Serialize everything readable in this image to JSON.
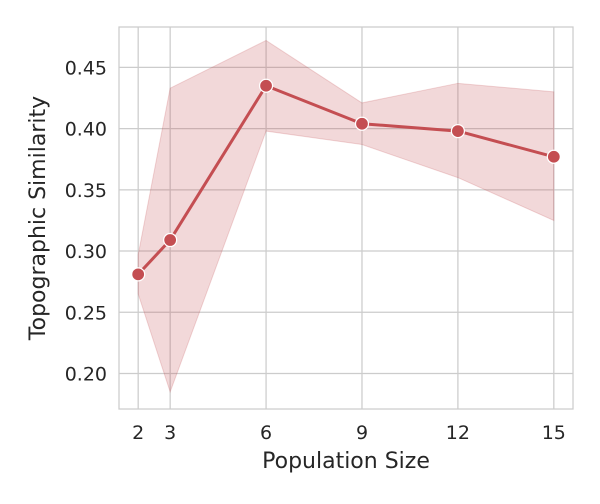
{
  "chart_data": {
    "type": "line",
    "title": "",
    "xlabel": "Population Size",
    "ylabel": "Topographic Similarity",
    "x": [
      2,
      3,
      6,
      9,
      12,
      15
    ],
    "xlim": [
      1.4,
      15.6
    ],
    "ylim": [
      0.171,
      0.483
    ],
    "xticks": [
      2,
      3,
      6,
      9,
      12,
      15
    ],
    "xtick_labels": [
      "2",
      "3",
      "6",
      "9",
      "12",
      "15"
    ],
    "yticks": [
      0.2,
      0.25,
      0.3,
      0.35,
      0.4,
      0.45
    ],
    "ytick_labels": [
      "0.20",
      "0.25",
      "0.30",
      "0.35",
      "0.40",
      "0.45"
    ],
    "grid": true,
    "legend": "none",
    "series": [
      {
        "values": [
          0.281,
          0.309,
          0.435,
          0.404,
          0.398,
          0.377
        ],
        "ci_lower": [
          0.265,
          0.185,
          0.398,
          0.387,
          0.36,
          0.325
        ],
        "ci_upper": [
          0.297,
          0.433,
          0.472,
          0.421,
          0.437,
          0.43
        ],
        "color": "#c44e52",
        "band_color": "#c44e52",
        "marker": "circle"
      }
    ]
  }
}
